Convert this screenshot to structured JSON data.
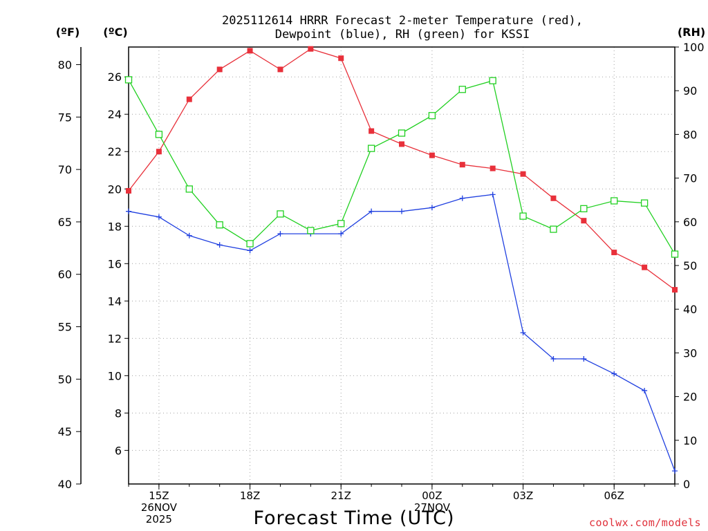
{
  "chart_data": {
    "type": "line",
    "title_line1": "2025112614 HRRR Forecast 2-meter Temperature (red),",
    "title_line2": "Dewpoint (blue), RH (green) for KSSI",
    "units": {
      "fahrenheit": "(ºF)",
      "celsius": "(ºC)",
      "rh": "(RH)"
    },
    "xlabel": "Forecast Time (UTC)",
    "credit": "coolwx.com/models",
    "x_hours": [
      14,
      15,
      16,
      17,
      18,
      19,
      20,
      21,
      22,
      23,
      24,
      25,
      26,
      27,
      28,
      29,
      30,
      31,
      32
    ],
    "xlim": [
      14,
      32
    ],
    "x_ticks": [
      {
        "hour": 15,
        "lines": [
          "15Z",
          "26NOV",
          "2025"
        ]
      },
      {
        "hour": 18,
        "lines": [
          "18Z"
        ]
      },
      {
        "hour": 21,
        "lines": [
          "21Z"
        ]
      },
      {
        "hour": 24,
        "lines": [
          "00Z",
          "27NOV"
        ]
      },
      {
        "hour": 27,
        "lines": [
          "03Z"
        ]
      },
      {
        "hour": 30,
        "lines": [
          "06Z"
        ]
      }
    ],
    "celsius_axis": {
      "ylim": [
        4.2,
        27.6
      ],
      "ticks": [
        6,
        8,
        10,
        12,
        14,
        16,
        18,
        20,
        22,
        24,
        26
      ]
    },
    "fahrenheit_axis": {
      "ylim": [
        40,
        81.68
      ],
      "ticks": [
        40,
        45,
        50,
        55,
        60,
        65,
        70,
        75,
        80
      ]
    },
    "rh_axis": {
      "ylim": [
        0,
        100
      ],
      "ticks": [
        0,
        10,
        20,
        30,
        40,
        50,
        60,
        70,
        80,
        90,
        100
      ]
    },
    "series": [
      {
        "name": "Temperature",
        "color": "#e8303a",
        "axis": "celsius",
        "marker": "filled-square",
        "values": [
          19.9,
          22.0,
          24.8,
          26.4,
          27.4,
          26.4,
          27.5,
          27.0,
          23.1,
          22.4,
          21.8,
          21.3,
          21.1,
          20.8,
          19.5,
          18.3,
          16.6,
          15.8,
          14.6
        ]
      },
      {
        "name": "Dewpoint",
        "color": "#2040e0",
        "axis": "celsius",
        "marker": "plus",
        "values": [
          18.8,
          18.5,
          17.5,
          17.0,
          16.7,
          17.6,
          17.6,
          17.6,
          18.8,
          18.8,
          19.0,
          19.5,
          19.7,
          12.3,
          10.9,
          10.9,
          10.1,
          9.2,
          4.9
        ]
      },
      {
        "name": "RH",
        "color": "#20d020",
        "axis": "rh",
        "marker": "open-square",
        "values": [
          92.5,
          80.0,
          67.5,
          59.3,
          55.0,
          61.8,
          58.0,
          59.6,
          76.8,
          80.3,
          84.3,
          90.3,
          92.3,
          61.3,
          58.3,
          63.0,
          64.8,
          64.3,
          52.6
        ]
      }
    ]
  }
}
